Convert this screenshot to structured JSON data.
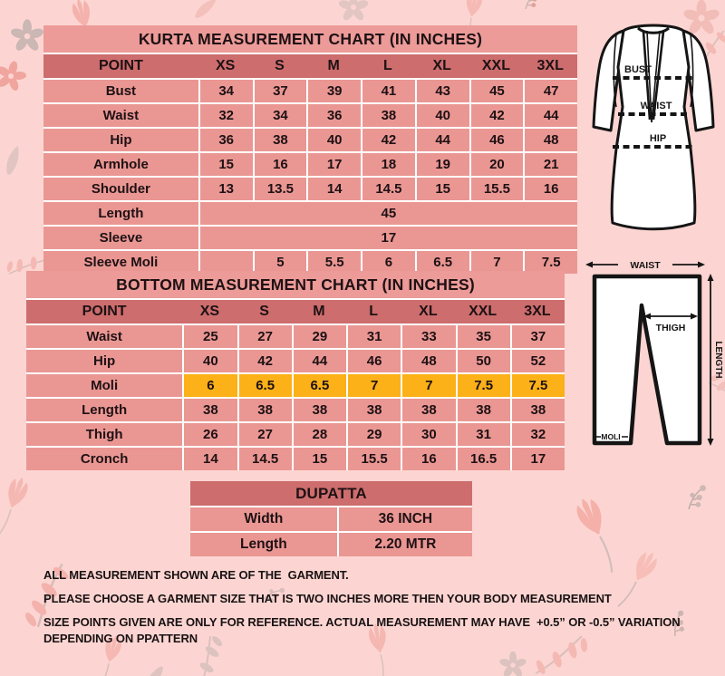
{
  "kurta_chart": {
    "title": "KURTA MEASUREMENT CHART (IN INCHES)",
    "columns": [
      "POINT",
      "XS",
      "S",
      "M",
      "L",
      "XL",
      "XXL",
      "3XL"
    ],
    "rows": [
      {
        "point": "Bust",
        "values": [
          "34",
          "37",
          "39",
          "41",
          "43",
          "45",
          "47"
        ]
      },
      {
        "point": "Waist",
        "values": [
          "32",
          "34",
          "36",
          "38",
          "40",
          "42",
          "44"
        ]
      },
      {
        "point": "Hip",
        "values": [
          "36",
          "38",
          "40",
          "42",
          "44",
          "46",
          "48"
        ]
      },
      {
        "point": "Armhole",
        "values": [
          "15",
          "16",
          "17",
          "18",
          "19",
          "20",
          "21"
        ]
      },
      {
        "point": "Shoulder",
        "values": [
          "13",
          "13.5",
          "14",
          "14.5",
          "15",
          "15.5",
          "16"
        ]
      },
      {
        "point": "Length",
        "merged": "45"
      },
      {
        "point": "Sleeve",
        "merged": "17"
      },
      {
        "point": "Sleeve Moli",
        "values": [
          "",
          "5",
          "5.5",
          "6",
          "6.5",
          "7",
          "7.5"
        ]
      }
    ]
  },
  "bottom_chart": {
    "title": "BOTTOM MEASUREMENT CHART (IN INCHES)",
    "columns": [
      "POINT",
      "XS",
      "S",
      "M",
      "L",
      "XL",
      "XXL",
      "3XL"
    ],
    "rows": [
      {
        "point": "Waist",
        "values": [
          "25",
          "27",
          "29",
          "31",
          "33",
          "35",
          "37"
        ]
      },
      {
        "point": "Hip",
        "values": [
          "40",
          "42",
          "44",
          "46",
          "48",
          "50",
          "52"
        ]
      },
      {
        "point": "Moli",
        "values": [
          "6",
          "6.5",
          "6.5",
          "7",
          "7",
          "7.5",
          "7.5"
        ],
        "highlight": true
      },
      {
        "point": "Length",
        "values": [
          "38",
          "38",
          "38",
          "38",
          "38",
          "38",
          "38"
        ]
      },
      {
        "point": "Thigh",
        "values": [
          "26",
          "27",
          "28",
          "29",
          "30",
          "31",
          "32"
        ]
      },
      {
        "point": "Cronch",
        "values": [
          "14",
          "14.5",
          "15",
          "15.5",
          "16",
          "16.5",
          "17"
        ]
      }
    ]
  },
  "dupatta_chart": {
    "title": "DUPATTA",
    "rows": [
      {
        "label": "Width",
        "value": "36 INCH"
      },
      {
        "label": "Length",
        "value": "2.20 MTR"
      }
    ]
  },
  "kurta_figure": {
    "labels": {
      "bust": "BUST",
      "waist": "WAIST",
      "hip": "HIP"
    }
  },
  "bottom_figure": {
    "labels": {
      "waist": "WAIST",
      "thigh": "THIGH",
      "length": "LENGTH",
      "moli": "MOLI"
    }
  },
  "notes": [
    "ALL MEASUREMENT SHOWN ARE OF THE  GARMENT.",
    "PLEASE CHOOSE A GARMENT SIZE THAT IS TWO INCHES MORE THEN YOUR BODY MEASUREMENT",
    "SIZE POINTS GIVEN ARE ONLY FOR REFERENCE. ACTUAL MEASUREMENT MAY HAVE  +0.5” OR -0.5” VARIATION DEPENDING ON PPATTERN"
  ],
  "colors": {
    "page_bg": "#fcd5d2",
    "title_pink": "#ec9b98",
    "row_pink": "#ea9793",
    "head_rose": "#cd6d6d",
    "highlight_yellow": "#fbb117",
    "ink": "#1e1114"
  }
}
